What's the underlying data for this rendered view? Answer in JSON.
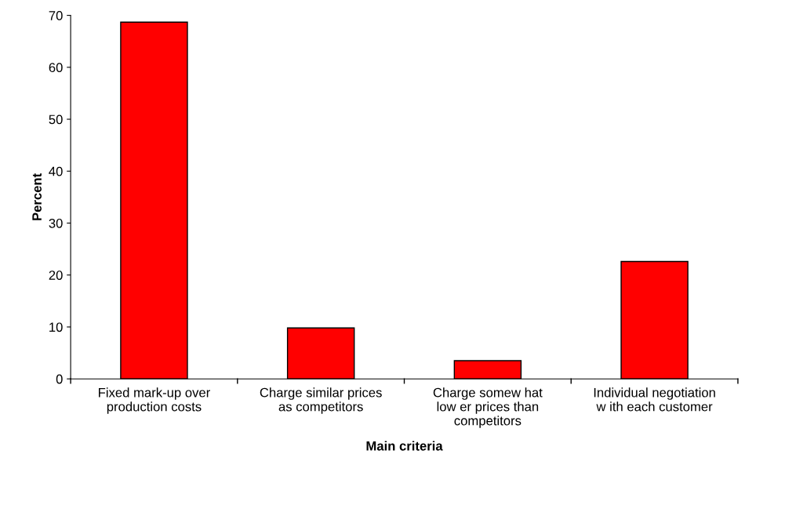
{
  "chart_data": {
    "type": "bar",
    "xlabel": "Main criteria",
    "ylabel": "Percent",
    "categories": [
      "Fixed mark-up over\nproduction costs",
      "Charge similar prices\nas competitors",
      "Charge somew hat\nlow er prices than\ncompetitors",
      "Individual negotiation\nw ith each customer"
    ],
    "values": [
      68.7,
      9.8,
      3.5,
      22.6
    ],
    "color": "#ff0000",
    "ylim": [
      0,
      70
    ],
    "yticks": [
      0,
      10,
      20,
      30,
      40,
      50,
      60,
      70
    ],
    "grid": false
  }
}
